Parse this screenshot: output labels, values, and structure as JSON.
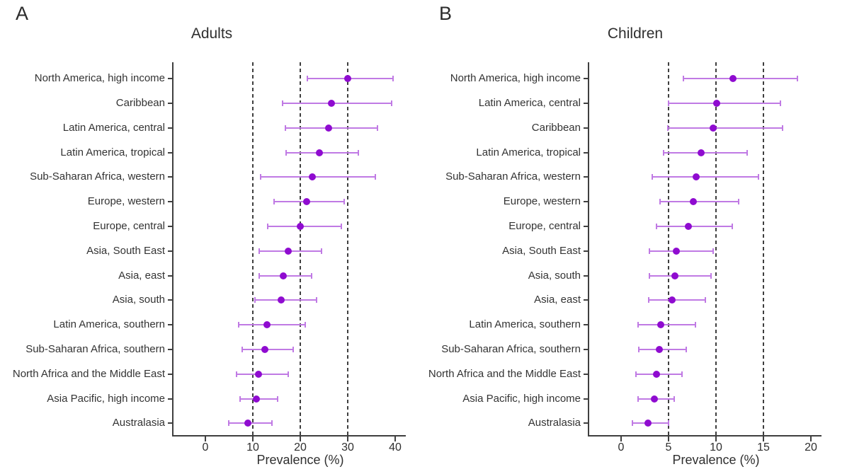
{
  "colors": {
    "dot": "#8F0BD0",
    "ci_bar": "#C07AE4",
    "axis": "#3F3F3F",
    "text": "#333333"
  },
  "chart_data": [
    {
      "type": "scatter",
      "subtype": "forest-dot-ci",
      "panel_label": "A",
      "title": "Adults",
      "xlabel": "Prevalence (%)",
      "x_ticks": [
        0,
        10,
        20,
        30,
        40
      ],
      "xlim": [
        0,
        42
      ],
      "reference_lines": [
        10,
        20,
        30
      ],
      "grid": "dashed-vertical-reference-lines",
      "legend": "none",
      "categories": [
        "North America, high income",
        "Caribbean",
        "Latin America, central",
        "Latin America, tropical",
        "Sub-Saharan Africa, western",
        "Europe, western",
        "Europe, central",
        "Asia, South East",
        "Asia, east",
        "Asia, south",
        "Latin America, southern",
        "Sub-Saharan Africa, southern",
        "North Africa and the Middle East",
        "Asia Pacific, high income",
        "Australasia"
      ],
      "series": [
        {
          "name": "Prevalence (%)",
          "values": [
            30.0,
            26.5,
            26.0,
            24.0,
            22.5,
            21.3,
            20.0,
            17.4,
            16.4,
            16.0,
            13.0,
            12.5,
            11.2,
            10.8,
            9.0
          ],
          "ci_low": [
            21.5,
            16.3,
            16.9,
            17.0,
            11.7,
            14.5,
            13.2,
            11.4,
            11.3,
            10.4,
            7.0,
            7.7,
            6.6,
            7.3,
            4.9
          ],
          "ci_high": [
            39.6,
            39.3,
            36.3,
            32.3,
            35.8,
            29.3,
            28.6,
            24.5,
            22.4,
            23.5,
            21.0,
            18.5,
            17.4,
            15.2,
            14.0
          ]
        }
      ]
    },
    {
      "type": "scatter",
      "subtype": "forest-dot-ci",
      "panel_label": "B",
      "title": "Children",
      "xlabel": "Prevalence (%)",
      "x_ticks": [
        0,
        5,
        10,
        15,
        20
      ],
      "xlim": [
        0,
        21
      ],
      "reference_lines": [
        5,
        10,
        15
      ],
      "grid": "dashed-vertical-reference-lines",
      "legend": "none",
      "categories": [
        "North America, high income",
        "Latin America, central",
        "Caribbean",
        "Latin America, tropical",
        "Sub-Saharan Africa, western",
        "Europe, western",
        "Europe, central",
        "Asia, South East",
        "Asia, south",
        "Asia, east",
        "Latin America, southern",
        "Sub-Saharan Africa, southern",
        "North Africa and the Middle East",
        "Asia Pacific, high income",
        "Australasia"
      ],
      "series": [
        {
          "name": "Prevalence (%)",
          "values": [
            11.8,
            10.1,
            9.7,
            8.4,
            7.9,
            7.6,
            7.1,
            5.8,
            5.7,
            5.4,
            4.2,
            4.0,
            3.7,
            3.5,
            2.8
          ],
          "ci_low": [
            6.6,
            5.0,
            4.9,
            4.5,
            3.3,
            4.1,
            3.7,
            3.0,
            3.0,
            2.9,
            1.8,
            1.9,
            1.6,
            1.8,
            1.2
          ],
          "ci_high": [
            18.6,
            16.8,
            17.0,
            13.3,
            14.5,
            12.4,
            11.7,
            9.7,
            9.5,
            8.9,
            7.8,
            6.9,
            6.4,
            5.6,
            5.0
          ]
        }
      ]
    }
  ]
}
